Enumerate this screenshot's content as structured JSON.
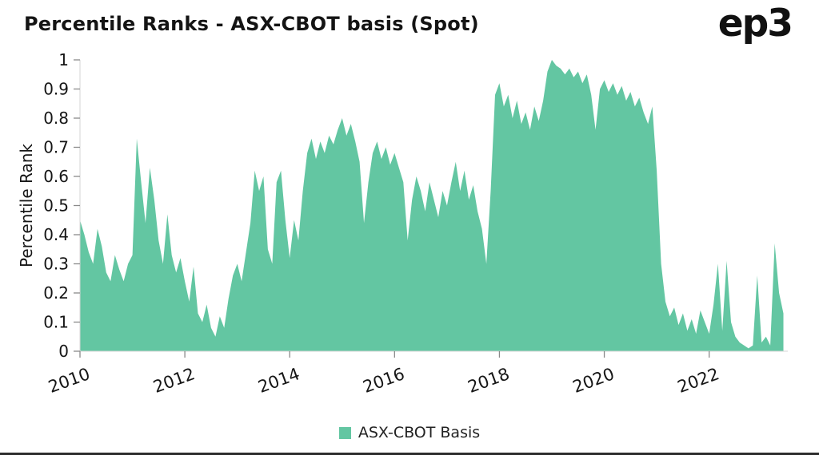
{
  "header": {
    "title": "Percentile Ranks - ASX-CBOT basis (Spot)",
    "logo_text": "ep3"
  },
  "legend": {
    "label": "ASX-CBOT Basis"
  },
  "chart_data": {
    "type": "area",
    "title": "Percentile Ranks - ASX-CBOT basis (Spot)",
    "xlabel": "",
    "ylabel": "Percentile Rank",
    "ylim": [
      0,
      1
    ],
    "xlim": [
      2010,
      2023.5
    ],
    "grid": false,
    "legend_position": "bottom",
    "fill_color": "#63C6A2",
    "axis_color": "#d6d6d6",
    "tick_color": "#8a8a8a",
    "yticks": [
      0,
      0.1,
      0.2,
      0.3,
      0.4,
      0.5,
      0.6,
      0.7,
      0.8,
      0.9,
      1
    ],
    "ytick_labels": [
      "0",
      "0.1",
      "0.2",
      "0.3",
      "0.4",
      "0.5",
      "0.6",
      "0.7",
      "0.8",
      "0.9",
      "1"
    ],
    "xticks": [
      2010,
      2012,
      2014,
      2016,
      2018,
      2020,
      2022
    ],
    "xtick_labels": [
      "2010",
      "2012",
      "2014",
      "2016",
      "2018",
      "2020",
      "2022"
    ],
    "series": [
      {
        "name": "ASX-CBOT Basis",
        "x_unit": "decimal_year",
        "x_start": 2010.0,
        "x_interval": 0.0833333,
        "values": [
          0.45,
          0.4,
          0.34,
          0.3,
          0.42,
          0.36,
          0.27,
          0.24,
          0.33,
          0.28,
          0.24,
          0.3,
          0.33,
          0.73,
          0.58,
          0.44,
          0.63,
          0.52,
          0.38,
          0.3,
          0.47,
          0.33,
          0.27,
          0.32,
          0.24,
          0.17,
          0.29,
          0.13,
          0.1,
          0.16,
          0.08,
          0.05,
          0.12,
          0.08,
          0.18,
          0.26,
          0.3,
          0.24,
          0.34,
          0.44,
          0.62,
          0.55,
          0.6,
          0.35,
          0.3,
          0.58,
          0.62,
          0.45,
          0.32,
          0.45,
          0.38,
          0.55,
          0.68,
          0.73,
          0.66,
          0.72,
          0.68,
          0.74,
          0.71,
          0.76,
          0.8,
          0.74,
          0.78,
          0.72,
          0.65,
          0.44,
          0.58,
          0.68,
          0.72,
          0.66,
          0.7,
          0.64,
          0.68,
          0.63,
          0.58,
          0.38,
          0.52,
          0.6,
          0.55,
          0.48,
          0.58,
          0.52,
          0.46,
          0.55,
          0.5,
          0.58,
          0.65,
          0.55,
          0.62,
          0.52,
          0.57,
          0.48,
          0.42,
          0.3,
          0.55,
          0.88,
          0.92,
          0.84,
          0.88,
          0.8,
          0.86,
          0.78,
          0.82,
          0.76,
          0.84,
          0.79,
          0.86,
          0.96,
          1.0,
          0.98,
          0.97,
          0.95,
          0.97,
          0.94,
          0.96,
          0.92,
          0.95,
          0.88,
          0.76,
          0.9,
          0.93,
          0.89,
          0.92,
          0.88,
          0.91,
          0.86,
          0.89,
          0.84,
          0.87,
          0.82,
          0.78,
          0.84,
          0.62,
          0.3,
          0.17,
          0.12,
          0.15,
          0.09,
          0.13,
          0.07,
          0.11,
          0.06,
          0.14,
          0.1,
          0.06,
          0.16,
          0.3,
          0.07,
          0.31,
          0.1,
          0.05,
          0.03,
          0.02,
          0.01,
          0.02,
          0.26,
          0.03,
          0.05,
          0.02,
          0.37,
          0.2,
          0.13
        ]
      }
    ]
  }
}
